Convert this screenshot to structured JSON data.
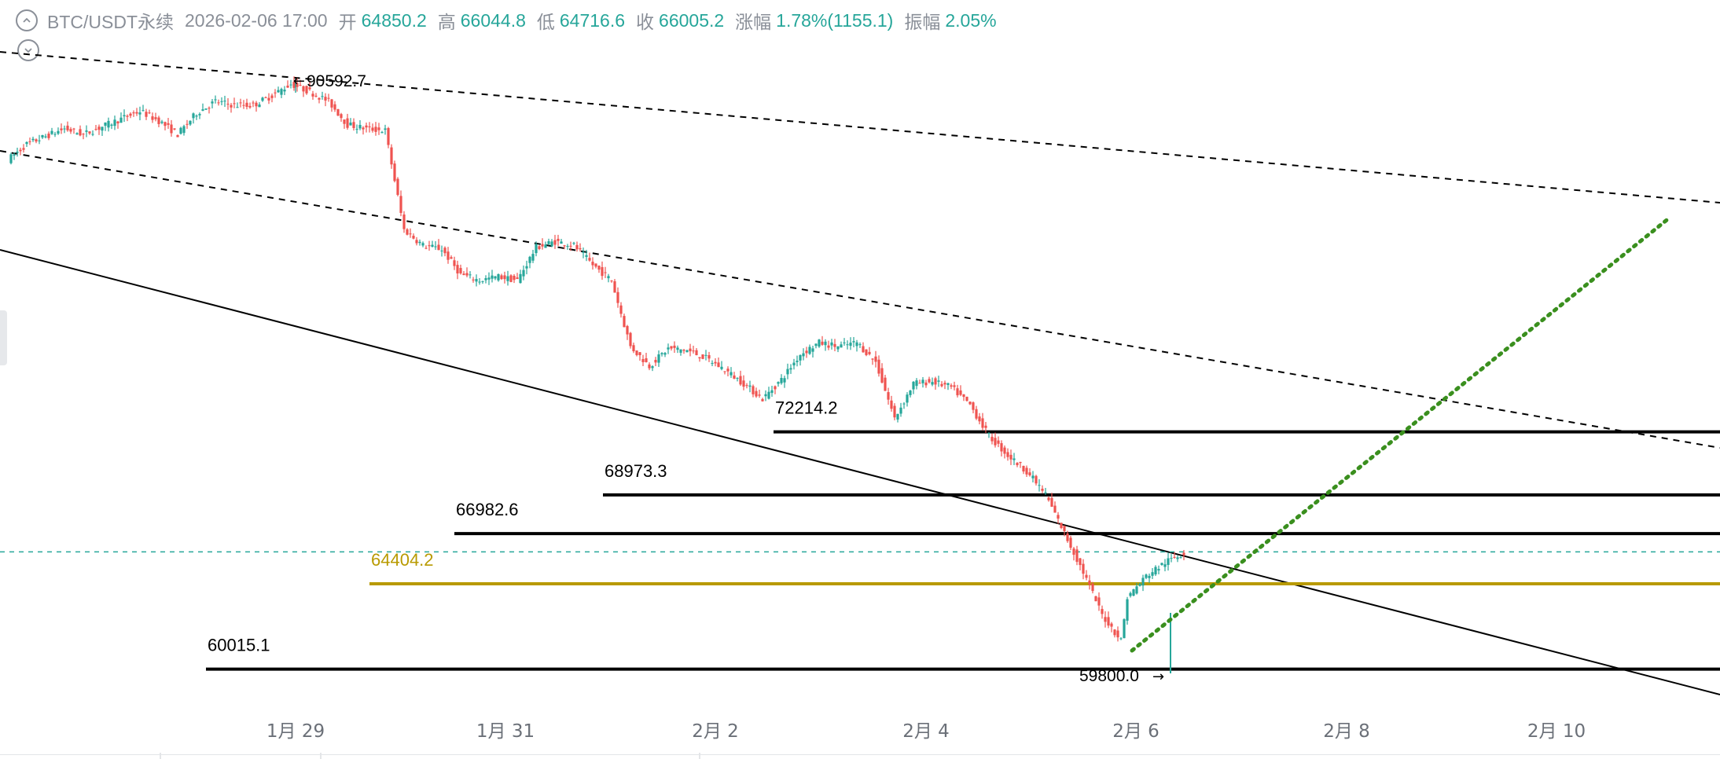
{
  "header": {
    "symbol": "BTC/USDT永续",
    "datetime": "2026-02-06 17:00",
    "open_label": "开",
    "open": "64850.2",
    "high_label": "高",
    "high": "66044.8",
    "low_label": "低",
    "low": "64716.6",
    "close_label": "收",
    "close": "66005.2",
    "change_label": "涨幅",
    "change": "1.78%(1155.1)",
    "amp_label": "振幅",
    "amp": "2.05%"
  },
  "colors": {
    "up": "#26a69a",
    "down": "#ef5350",
    "text": "#8a8f98",
    "accent_level": "#b89a00",
    "trend_dotted": "#3a8f1e"
  },
  "chart_data": {
    "type": "candlestick",
    "x_axis": {
      "tick_labels": [
        "1月 29",
        "1月 31",
        "2月 2",
        "2月 4",
        "2月 6",
        "2月 8",
        "2月 10"
      ]
    },
    "price_path_hourly": [
      [
        0,
        86200
      ],
      [
        6,
        87000
      ],
      [
        12,
        87400
      ],
      [
        18,
        87800
      ],
      [
        24,
        87500
      ],
      [
        30,
        87900
      ],
      [
        36,
        88300
      ],
      [
        42,
        88700
      ],
      [
        48,
        88200
      ],
      [
        54,
        87500
      ],
      [
        60,
        88600
      ],
      [
        66,
        89200
      ],
      [
        72,
        89000
      ],
      [
        78,
        89000
      ],
      [
        84,
        89500
      ],
      [
        90,
        90100
      ],
      [
        96,
        89700
      ],
      [
        102,
        89200
      ],
      [
        108,
        88000
      ],
      [
        114,
        87800
      ],
      [
        120,
        87700
      ],
      [
        126,
        82600
      ],
      [
        132,
        81800
      ],
      [
        138,
        81600
      ],
      [
        144,
        80300
      ],
      [
        150,
        80000
      ],
      [
        156,
        80200
      ],
      [
        162,
        80000
      ],
      [
        168,
        81700
      ],
      [
        174,
        82000
      ],
      [
        180,
        81800
      ],
      [
        186,
        80800
      ],
      [
        192,
        80000
      ],
      [
        198,
        76600
      ],
      [
        204,
        75600
      ],
      [
        210,
        76500
      ],
      [
        216,
        76400
      ],
      [
        222,
        76000
      ],
      [
        228,
        75400
      ],
      [
        234,
        74700
      ],
      [
        240,
        73900
      ],
      [
        246,
        74900
      ],
      [
        252,
        76200
      ],
      [
        258,
        76800
      ],
      [
        264,
        76600
      ],
      [
        270,
        76800
      ],
      [
        276,
        75800
      ],
      [
        282,
        72900
      ],
      [
        288,
        74700
      ],
      [
        294,
        74800
      ],
      [
        300,
        74500
      ],
      [
        306,
        73600
      ],
      [
        312,
        72000
      ],
      [
        318,
        71000
      ],
      [
        324,
        70200
      ],
      [
        330,
        69000
      ],
      [
        336,
        67000
      ],
      [
        342,
        65000
      ],
      [
        348,
        62800
      ],
      [
        354,
        61500
      ],
      [
        356,
        63700
      ],
      [
        362,
        64800
      ],
      [
        368,
        65500
      ],
      [
        374,
        66000
      ]
    ],
    "markers": [
      {
        "label": "90592.7",
        "kind": "high"
      },
      {
        "label": "59800.0",
        "kind": "low"
      }
    ],
    "horizontal_levels": [
      {
        "label": "72214.2",
        "value": 72214.2,
        "color": "#000000"
      },
      {
        "label": "68973.3",
        "value": 68973.3,
        "color": "#000000"
      },
      {
        "label": "66982.6",
        "value": 66982.6,
        "color": "#000000"
      },
      {
        "label": "64404.2",
        "value": 64404.2,
        "color": "#b89a00"
      },
      {
        "label": "60015.1",
        "value": 60015.1,
        "color": "#000000"
      }
    ],
    "last_price_line": 66005.2,
    "trendlines": [
      "dashed-channel-upper",
      "dashed-channel-lower",
      "solid-descending",
      "dotted-ascending"
    ],
    "grid": false
  }
}
